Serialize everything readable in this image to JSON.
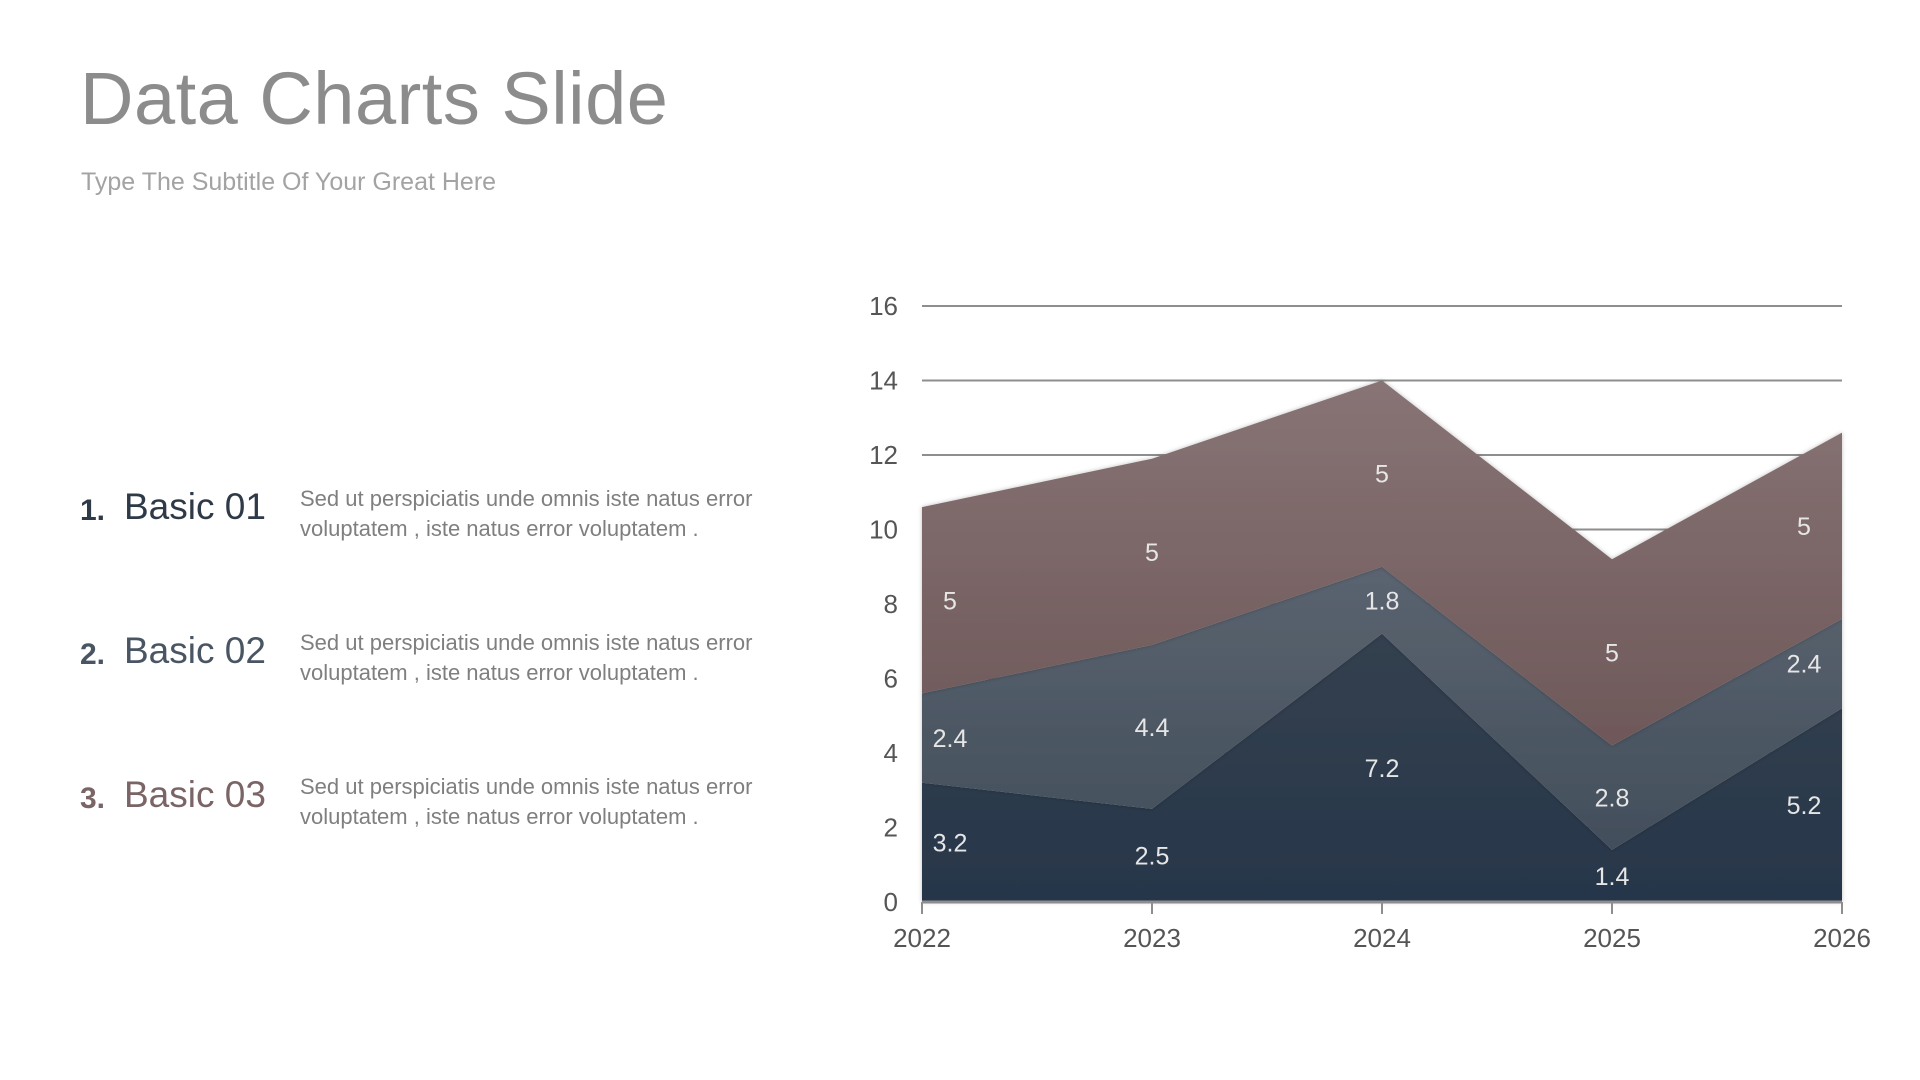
{
  "title": "Data Charts Slide",
  "subtitle": "Type The Subtitle Of Your Great Here",
  "items": [
    {
      "number": "1.",
      "label": "Basic 01",
      "text": "Sed ut perspiciatis unde omnis iste natus error voluptatem , iste natus error voluptatem .",
      "color": "#2f3a48"
    },
    {
      "number": "2.",
      "label": "Basic 02",
      "text": "Sed ut perspiciatis unde omnis iste natus error voluptatem , iste natus error voluptatem .",
      "color": "#4a5563"
    },
    {
      "number": "3.",
      "label": "Basic 03",
      "text": "Sed ut perspiciatis unde omnis iste natus error voluptatem , iste natus error voluptatem .",
      "color": "#7a6465"
    }
  ],
  "chart_data": {
    "type": "area",
    "stacked": true,
    "categories": [
      "2022",
      "2023",
      "2024",
      "2025",
      "2026"
    ],
    "ylim": [
      0,
      16
    ],
    "yticks": [
      0,
      2,
      4,
      6,
      8,
      10,
      12,
      14,
      16
    ],
    "grid": true,
    "series": [
      {
        "values": [
          3.2,
          2.5,
          7.2,
          1.4,
          5.2
        ],
        "colors": [
          "#34404f",
          "#27364a"
        ]
      },
      {
        "values": [
          2.4,
          4.4,
          1.8,
          2.8,
          2.4
        ],
        "colors": [
          "#5b6470",
          "#424e5b"
        ]
      },
      {
        "values": [
          5,
          5,
          5,
          5,
          5
        ],
        "colors": [
          "#887475",
          "#6e5859"
        ]
      }
    ]
  }
}
